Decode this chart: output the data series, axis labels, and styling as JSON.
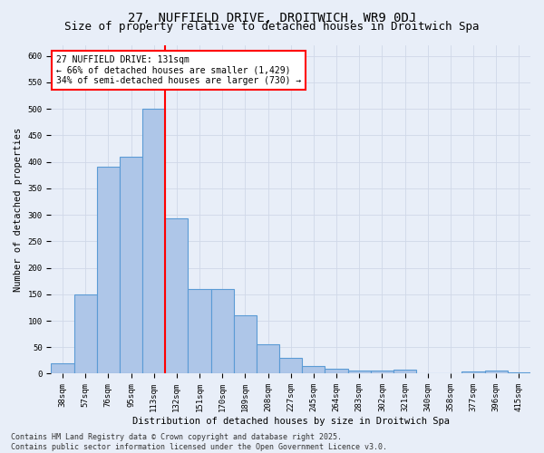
{
  "title": "27, NUFFIELD DRIVE, DROITWICH, WR9 0DJ",
  "subtitle": "Size of property relative to detached houses in Droitwich Spa",
  "xlabel": "Distribution of detached houses by size in Droitwich Spa",
  "ylabel": "Number of detached properties",
  "bar_labels": [
    "38sqm",
    "57sqm",
    "76sqm",
    "95sqm",
    "113sqm",
    "132sqm",
    "151sqm",
    "170sqm",
    "189sqm",
    "208sqm",
    "227sqm",
    "245sqm",
    "264sqm",
    "283sqm",
    "302sqm",
    "321sqm",
    "340sqm",
    "358sqm",
    "377sqm",
    "396sqm",
    "415sqm"
  ],
  "bar_values": [
    20,
    150,
    390,
    410,
    500,
    293,
    160,
    160,
    110,
    55,
    30,
    15,
    10,
    6,
    6,
    8,
    1,
    0,
    5,
    6,
    3
  ],
  "bar_color": "#aec6e8",
  "bar_edge_color": "#5b9bd5",
  "vline_x_index": 5,
  "vline_color": "red",
  "annotation_text": "27 NUFFIELD DRIVE: 131sqm\n← 66% of detached houses are smaller (1,429)\n34% of semi-detached houses are larger (730) →",
  "annotation_box_color": "white",
  "annotation_box_edge": "red",
  "ylim": [
    0,
    620
  ],
  "yticks": [
    0,
    50,
    100,
    150,
    200,
    250,
    300,
    350,
    400,
    450,
    500,
    550,
    600
  ],
  "grid_color": "#d0d8e8",
  "background_color": "#e8eef8",
  "footer": "Contains HM Land Registry data © Crown copyright and database right 2025.\nContains public sector information licensed under the Open Government Licence v3.0.",
  "title_fontsize": 10,
  "subtitle_fontsize": 9,
  "axis_label_fontsize": 7.5,
  "tick_fontsize": 6.5,
  "annotation_fontsize": 7,
  "footer_fontsize": 6
}
